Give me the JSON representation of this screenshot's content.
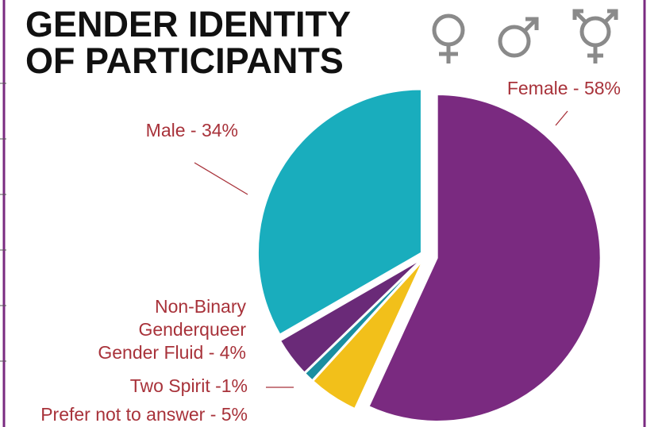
{
  "chart_data": {
    "type": "pie",
    "title": [
      "GENDER IDENTITY",
      "OF PARTICIPANTS"
    ],
    "values": [
      58,
      5,
      1,
      4,
      34
    ],
    "value_labels": [
      "Female - 58%",
      "Prefer not to answer - 5%",
      "Two Spirit -1%",
      [
        "Non-Binary",
        "Genderqueer",
        "Gender Fluid - 4%"
      ],
      "Male - 34%"
    ],
    "colors": [
      "#7a2a80",
      "#f2c01a",
      "#1a8fa0",
      "#6a2a78",
      "#19adbd"
    ]
  }
}
